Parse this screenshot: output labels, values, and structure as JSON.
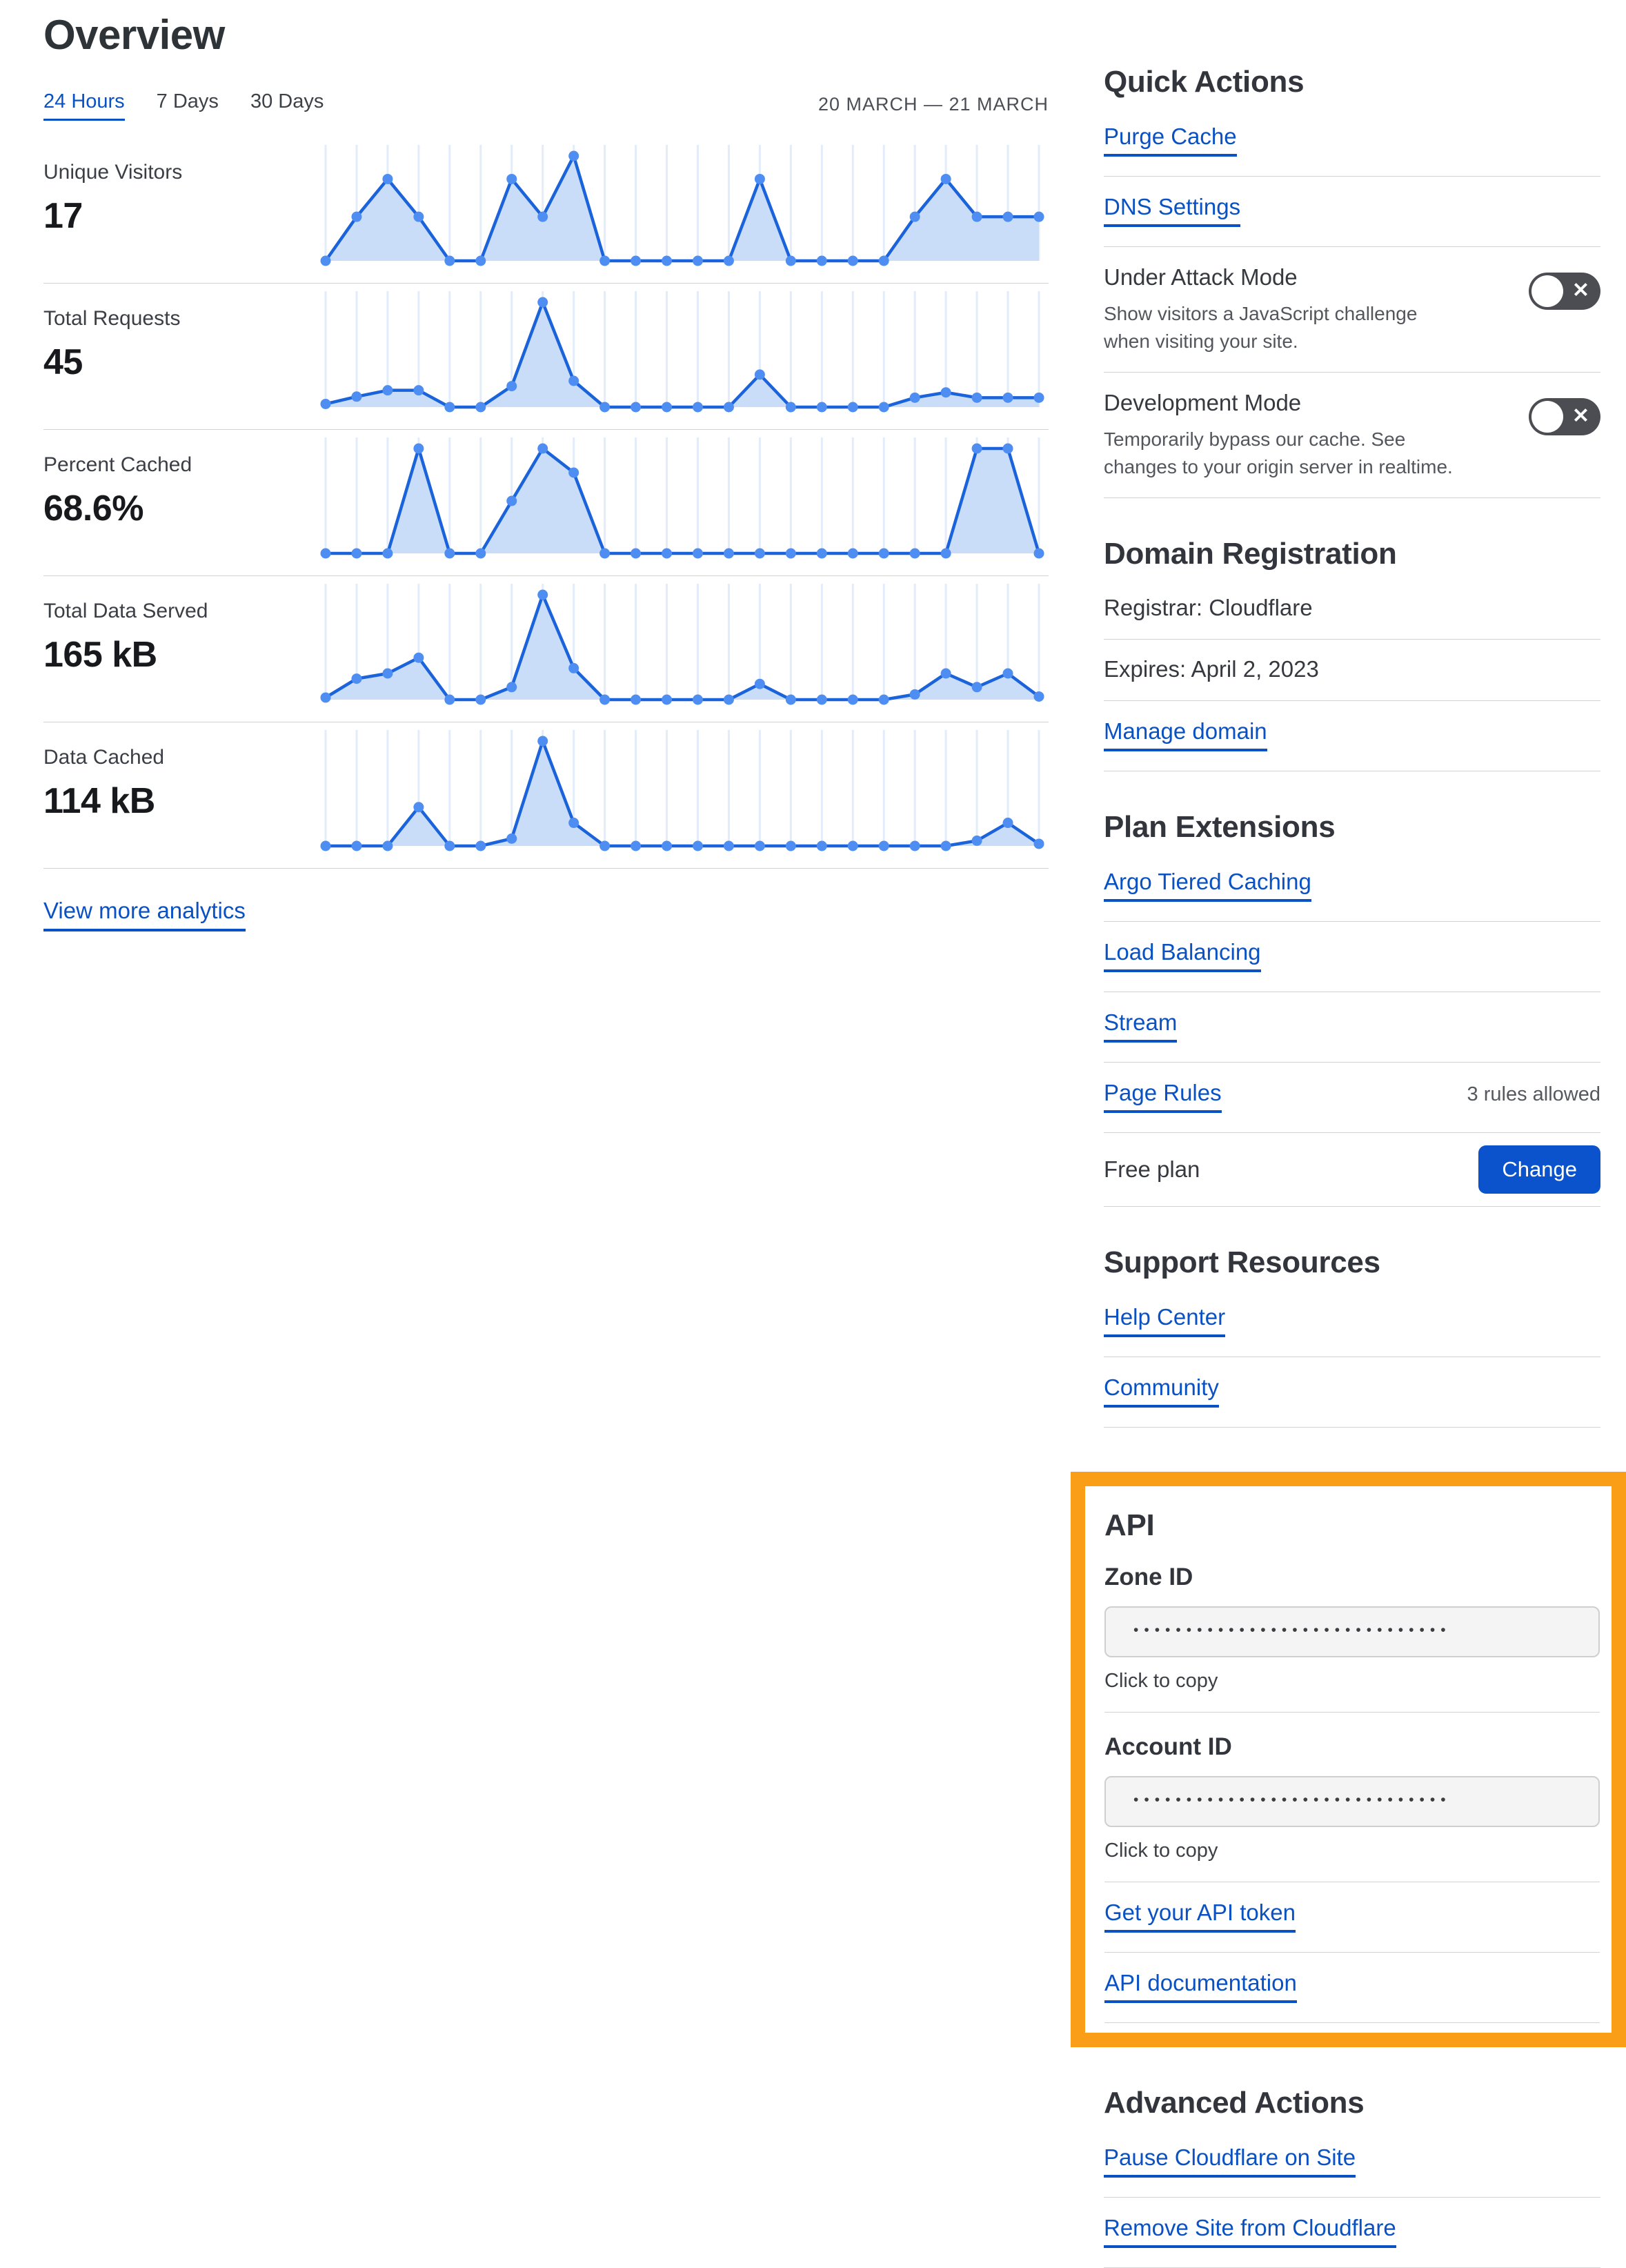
{
  "colors": {
    "accent": "#0a51c3",
    "chart_line": "#1a63da",
    "chart_dot": "#4e8df2",
    "chart_fill": "#c9ddf8",
    "chart_grid": "#e3ecfa",
    "divider": "#d3d3d3",
    "heading": "#32363c",
    "toggle_bg": "#4b4d52",
    "highlight_orange": "#fb9e17",
    "button_blue": "#0b53cc"
  },
  "icons": {
    "toggle_off_x": "✕"
  },
  "header": {
    "title": "Overview",
    "tabs": [
      "24 Hours",
      "7 Days",
      "30 Days"
    ],
    "active_tab": "24 Hours",
    "date_range": "20 MARCH — 21 MARCH"
  },
  "main": {
    "view_more": "View more analytics"
  },
  "chart_data": [
    {
      "type": "area",
      "title": "Unique Visitors",
      "display_value": "17",
      "x_axis": "24 hourly points, 20 March — 21 March, no tick labels",
      "y_axis": "unlabeled, values as percent of series max",
      "grid": "vertical gridlines only",
      "legend": "none",
      "values": [
        0,
        42,
        78,
        42,
        0,
        0,
        78,
        42,
        100,
        0,
        0,
        0,
        0,
        0,
        78,
        0,
        0,
        0,
        0,
        42,
        78,
        42,
        42,
        42
      ]
    },
    {
      "type": "area",
      "title": "Total Requests",
      "display_value": "45",
      "x_axis": "24 hourly points, 20 March — 21 March, no tick labels",
      "y_axis": "unlabeled, values as percent of series max",
      "grid": "vertical gridlines only",
      "legend": "none",
      "values": [
        3,
        10,
        16,
        16,
        0,
        0,
        20,
        100,
        25,
        0,
        0,
        0,
        0,
        0,
        31,
        0,
        0,
        0,
        0,
        9,
        14,
        9,
        9,
        9
      ]
    },
    {
      "type": "area",
      "title": "Percent Cached",
      "display_value": "68.6%",
      "x_axis": "24 hourly points, 20 March — 21 March, no tick labels",
      "y_axis": "unlabeled, values as percent of series max",
      "grid": "vertical gridlines only",
      "legend": "none",
      "values": [
        0,
        0,
        0,
        100,
        0,
        0,
        50,
        100,
        77,
        0,
        0,
        0,
        0,
        0,
        0,
        0,
        0,
        0,
        0,
        0,
        0,
        100,
        100,
        0
      ]
    },
    {
      "type": "area",
      "title": "Total Data Served",
      "display_value": "165 kB",
      "x_axis": "24 hourly points, 20 March — 21 March, no tick labels",
      "y_axis": "unlabeled, values as percent of series max",
      "grid": "vertical gridlines only",
      "legend": "none",
      "values": [
        2,
        20,
        25,
        40,
        0,
        0,
        12,
        100,
        30,
        0,
        0,
        0,
        0,
        0,
        15,
        0,
        0,
        0,
        0,
        5,
        25,
        12,
        25,
        3
      ]
    },
    {
      "type": "area",
      "title": "Data Cached",
      "display_value": "114 kB",
      "x_axis": "24 hourly points, 20 March — 21 March, no tick labels",
      "y_axis": "unlabeled, values as percent of series max",
      "grid": "vertical gridlines only",
      "legend": "none",
      "values": [
        0,
        0,
        0,
        37,
        0,
        0,
        7,
        100,
        22,
        0,
        0,
        0,
        0,
        0,
        0,
        0,
        0,
        0,
        0,
        0,
        0,
        5,
        22,
        2
      ]
    }
  ],
  "sidebar": {
    "quick_actions": {
      "title": "Quick Actions",
      "links": [
        "Purge Cache",
        "DNS Settings"
      ],
      "toggles": [
        {
          "label": "Under Attack Mode",
          "desc_lines": [
            "Show visitors a JavaScript challenge",
            "when visiting your site."
          ],
          "state": "off"
        },
        {
          "label": "Development Mode",
          "desc_lines": [
            "Temporarily bypass our cache. See",
            "changes to your origin server in realtime."
          ],
          "state": "off"
        }
      ]
    },
    "domain_registration": {
      "title": "Domain Registration",
      "rows": [
        "Registrar: Cloudflare",
        "Expires: April 2, 2023"
      ],
      "link": "Manage domain"
    },
    "plan_extensions": {
      "title": "Plan Extensions",
      "links": [
        "Argo Tiered Caching",
        "Load Balancing",
        "Stream"
      ],
      "page_rules": {
        "label": "Page Rules",
        "note": "3 rules allowed"
      },
      "plan": {
        "label": "Free plan",
        "button": "Change"
      }
    },
    "support": {
      "title": "Support Resources",
      "links": [
        "Help Center",
        "Community"
      ]
    },
    "api": {
      "title": "API",
      "fields": [
        {
          "label": "Zone ID",
          "masked_value": "••••••••••••••••••••••••••••••",
          "hint": "Click to copy"
        },
        {
          "label": "Account ID",
          "masked_value": "••••••••••••••••••••••••••••••",
          "hint": "Click to copy"
        }
      ],
      "links": [
        "Get your API token",
        "API documentation"
      ]
    },
    "advanced": {
      "title": "Advanced Actions",
      "links": [
        "Pause Cloudflare on Site",
        "Remove Site from Cloudflare"
      ]
    }
  }
}
